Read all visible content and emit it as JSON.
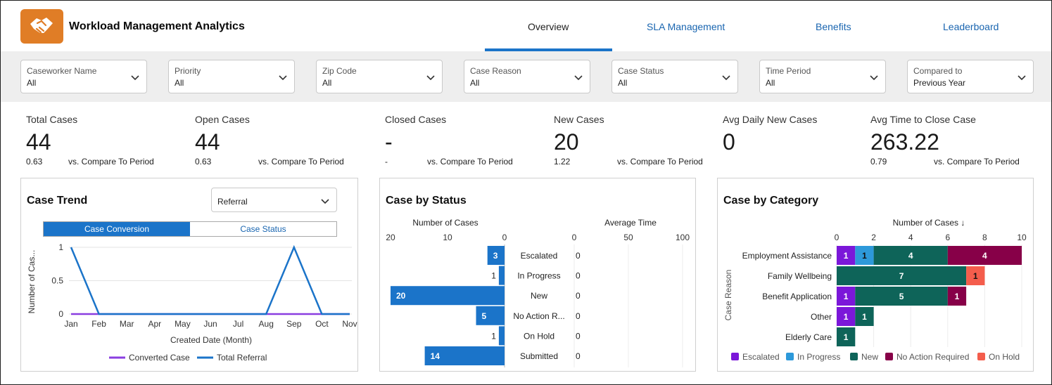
{
  "header": {
    "title": "Workload Management Analytics",
    "logo_icon": "handshake-icon",
    "accent": "#e07d26",
    "tabs": [
      {
        "label": "Overview",
        "active": true
      },
      {
        "label": "SLA Management",
        "active": false
      },
      {
        "label": "Benefits",
        "active": false
      },
      {
        "label": "Leaderboard",
        "active": false
      }
    ]
  },
  "filters": [
    {
      "label": "Caseworker Name",
      "value": "All"
    },
    {
      "label": "Priority",
      "value": "All"
    },
    {
      "label": "Zip Code",
      "value": "All"
    },
    {
      "label": "Case Reason",
      "value": "All"
    },
    {
      "label": "Case Status",
      "value": "All"
    },
    {
      "label": "Time Period",
      "value": "All"
    },
    {
      "label": "Compared to",
      "value": "Previous Year"
    }
  ],
  "kpis": [
    {
      "label": "Total Cases",
      "value": "44",
      "change": "0.63",
      "compare": "vs. Compare To Period"
    },
    {
      "label": "Open Cases",
      "value": "44",
      "change": "0.63",
      "compare": "vs. Compare To Period"
    },
    {
      "label": "Closed Cases",
      "value": "-",
      "change": "-",
      "compare": "vs. Compare To Period"
    },
    {
      "label": "New Cases",
      "value": "20",
      "change": "1.22",
      "compare": "vs. Compare To Period"
    },
    {
      "label": "Avg Daily New Cases",
      "value": "0",
      "change": "",
      "compare": ""
    },
    {
      "label": "Avg Time to Close Case",
      "value": "263.22",
      "change": "0.79",
      "compare": "vs. Compare To Period"
    }
  ],
  "case_trend": {
    "title": "Case Trend",
    "select_value": "Referral",
    "toggle": {
      "on": "Case Conversion",
      "off": "Case Status"
    }
  },
  "case_status": {
    "title": "Case by Status"
  },
  "case_category": {
    "title": "Case by Category"
  },
  "chart_data": [
    {
      "type": "line",
      "xlabel": "Created Date (Month)",
      "ylabel": "Number of Cas...",
      "categories": [
        "Jan",
        "Feb",
        "Mar",
        "Apr",
        "May",
        "Jun",
        "Jul",
        "Aug",
        "Sep",
        "Oct",
        "Nov"
      ],
      "yticks": [
        "0",
        "0.5",
        "1"
      ],
      "ylim": [
        0,
        1
      ],
      "series": [
        {
          "name": "Converted Case",
          "color": "#8a3ee0",
          "values": [
            0,
            0,
            0,
            0,
            0,
            0,
            0,
            0,
            0,
            0,
            0
          ]
        },
        {
          "name": "Total Referral",
          "color": "#1b74c9",
          "values": [
            1,
            0,
            0,
            0,
            0,
            0,
            0,
            0,
            1,
            0,
            0
          ]
        }
      ],
      "legend": "bottom"
    },
    {
      "type": "bar",
      "orientation": "horizontal",
      "categories": [
        "Escalated",
        "In Progress",
        "New",
        "No Action R...",
        "On Hold",
        "Submitted"
      ],
      "series": [
        {
          "name": "Number of Cases",
          "values": [
            3,
            1,
            20,
            5,
            1,
            14
          ],
          "ticks": [
            "20",
            "10",
            "0"
          ],
          "xlim": [
            0,
            20
          ],
          "direction": "reversed",
          "color": "#1b74c9"
        },
        {
          "name": "Average Time",
          "values": [
            0,
            0,
            0,
            0,
            0,
            0
          ],
          "ticks": [
            "0",
            "50",
            "100"
          ],
          "xlim": [
            0,
            100
          ]
        }
      ]
    },
    {
      "type": "bar",
      "orientation": "horizontal",
      "stacked": true,
      "xlabel": "Number of Cases ↓",
      "ylabel": "Case Reason",
      "xticks": [
        "0",
        "2",
        "4",
        "6",
        "8",
        "10"
      ],
      "xlim": [
        0,
        10
      ],
      "categories": [
        "Employment Assistance",
        "Family Wellbeing",
        "Benefit Application",
        "Other",
        "Elderly Care"
      ],
      "series": [
        {
          "name": "Escalated",
          "color": "#7b17d9",
          "values": [
            1,
            0,
            1,
            1,
            0
          ]
        },
        {
          "name": "In Progress",
          "color": "#2d99da",
          "values": [
            1,
            0,
            0,
            0,
            0
          ]
        },
        {
          "name": "New",
          "color": "#0e6459",
          "values": [
            4,
            7,
            5,
            1,
            1
          ]
        },
        {
          "name": "No Action Required",
          "color": "#870048",
          "values": [
            4,
            0,
            1,
            0,
            0
          ]
        },
        {
          "name": "On Hold",
          "color": "#f45d4c",
          "values": [
            0,
            1,
            0,
            0,
            0
          ]
        }
      ],
      "legend": "bottom"
    }
  ]
}
